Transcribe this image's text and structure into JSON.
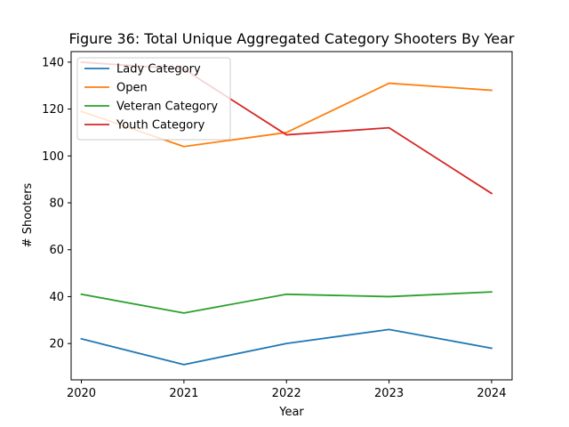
{
  "chart_data": {
    "type": "line",
    "title": "Figure 36: Total Unique Aggregated Category Shooters By Year",
    "xlabel": "Year",
    "ylabel": "# Shooters",
    "x": [
      2020,
      2021,
      2022,
      2023,
      2024
    ],
    "xlim": [
      2019.9,
      2024.2
    ],
    "ylim": [
      4.5,
      144.5
    ],
    "yticks": [
      20,
      40,
      60,
      80,
      100,
      120,
      140
    ],
    "grid": false,
    "legend_position": "top-left",
    "series": [
      {
        "name": "Lady Category",
        "color": "#1f77b4",
        "values": [
          22,
          11,
          20,
          26,
          18
        ]
      },
      {
        "name": "Open",
        "color": "#ff7f0e",
        "values": [
          119,
          104,
          110,
          131,
          128
        ]
      },
      {
        "name": "Veteran Category",
        "color": "#2ca02c",
        "values": [
          41,
          33,
          41,
          40,
          42
        ]
      },
      {
        "name": "Youth Category",
        "color": "#d62728",
        "values": [
          140,
          137,
          109,
          112,
          84
        ]
      }
    ]
  }
}
